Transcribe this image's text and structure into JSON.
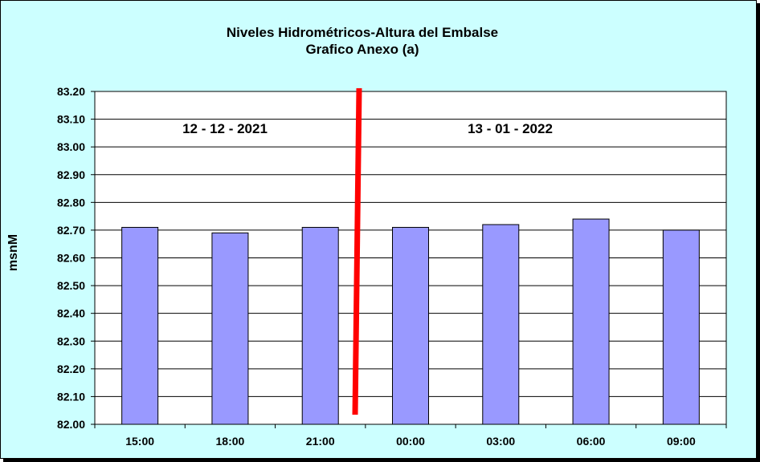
{
  "chart_data": {
    "type": "bar",
    "title": "Niveles Hidrométricos-Altura del Embalse",
    "subtitle": "Grafico Anexo (a)",
    "ylabel": "msnM",
    "xlabel": "",
    "categories": [
      "15:00",
      "18:00",
      "21:00",
      "00:00",
      "03:00",
      "06:00",
      "09:00"
    ],
    "values": [
      82.71,
      82.69,
      82.71,
      82.71,
      82.72,
      82.74,
      82.7
    ],
    "ylim": [
      82.0,
      83.2
    ],
    "yticks": [
      "82.00",
      "82.10",
      "82.20",
      "82.30",
      "82.40",
      "82.50",
      "82.60",
      "82.70",
      "82.80",
      "82.90",
      "83.00",
      "83.10",
      "83.20"
    ],
    "grid": true,
    "annotations": [
      "12 - 12 - 2021",
      "13 - 01 - 2022"
    ],
    "colors": {
      "background": "#ccffff",
      "plot_area": "#ffffff",
      "bar_fill": "#9999ff",
      "bar_stroke": "#000000",
      "divider": "#ff0000"
    }
  }
}
